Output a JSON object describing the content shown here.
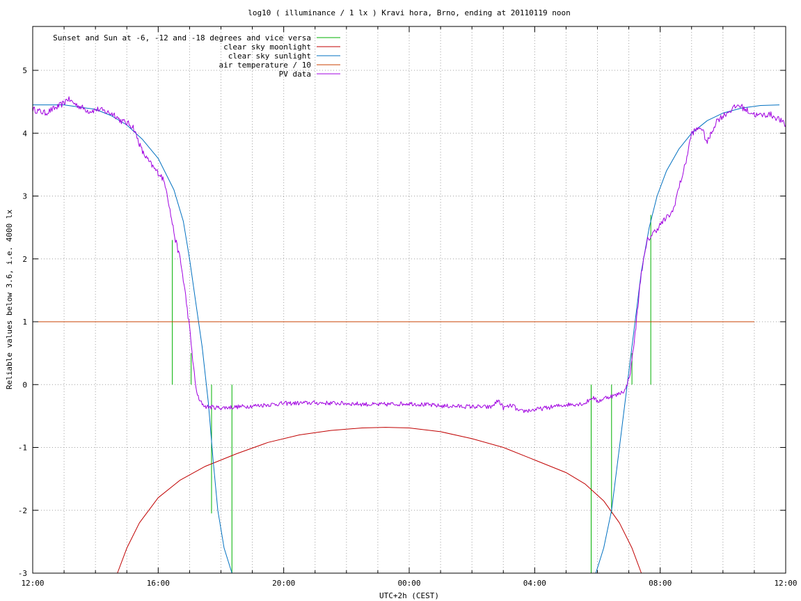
{
  "chart_data": {
    "type": "line",
    "title": "log10 ( illuminance / 1 lx ) Kravi hora, Brno, ending at 20110119 noon",
    "xlabel": "UTC+2h (CEST)",
    "ylabel": "Reliable values below 3.6, i.e. 4000 lx",
    "xlim": [
      -12,
      12
    ],
    "ylim": [
      -3,
      5.8
    ],
    "x_unit": "hours relative to 00:00 UTC+2h",
    "x_ticks_major": [
      {
        "x": -12,
        "label": "12:00"
      },
      {
        "x": -8,
        "label": "16:00"
      },
      {
        "x": -4,
        "label": "20:00"
      },
      {
        "x": 0,
        "label": "00:00"
      },
      {
        "x": 4,
        "label": "04:00"
      },
      {
        "x": 8,
        "label": "08:00"
      },
      {
        "x": 12,
        "label": "12:00"
      }
    ],
    "x_ticks_minor": [
      -11,
      -10,
      -9,
      -7,
      -6,
      -5,
      -3,
      -2,
      -1,
      1,
      2,
      3,
      5,
      6,
      7,
      9,
      10,
      11
    ],
    "y_ticks": [
      {
        "y": -3,
        "label": "-3"
      },
      {
        "y": -2,
        "label": "-2"
      },
      {
        "y": -1,
        "label": "-1"
      },
      {
        "y": 0,
        "label": "0"
      },
      {
        "y": 1,
        "label": "1"
      },
      {
        "y": 2,
        "label": "2"
      },
      {
        "y": 3,
        "label": "3"
      },
      {
        "y": 4,
        "label": "4"
      },
      {
        "y": 5,
        "label": "5"
      }
    ],
    "grid": true,
    "legend_position": "top-left",
    "colors": {
      "sun_marks": "#00b000",
      "moonlight": "#c00000",
      "sunlight": "#0070c0",
      "air_temp": "#c84000",
      "pv": "#a000e0"
    },
    "series": [
      {
        "name": "Sunset and Sun at -6, -12 and -18 degrees and vice versa",
        "kind": "vertical-marks",
        "color": "#00b000",
        "marks": [
          {
            "x": -7.55,
            "y_from": 0,
            "y_to": 2.3
          },
          {
            "x": -6.95,
            "y_from": 0,
            "y_to": 0.5
          },
          {
            "x": -6.3,
            "y_from": -2.05,
            "y_to": 0
          },
          {
            "x": -5.65,
            "y_from": -3,
            "y_to": 0
          },
          {
            "x": 5.8,
            "y_from": -3,
            "y_to": 0
          },
          {
            "x": 6.45,
            "y_from": -2.05,
            "y_to": 0
          },
          {
            "x": 7.1,
            "y_from": 0,
            "y_to": 0.5
          },
          {
            "x": 7.7,
            "y_from": 0,
            "y_to": 2.7
          }
        ]
      },
      {
        "name": "clear sky moonlight",
        "color": "#c00000",
        "points": [
          [
            -9.3,
            -3.0
          ],
          [
            -9.0,
            -2.6
          ],
          [
            -8.6,
            -2.2
          ],
          [
            -8.0,
            -1.8
          ],
          [
            -7.3,
            -1.52
          ],
          [
            -6.5,
            -1.3
          ],
          [
            -5.5,
            -1.1
          ],
          [
            -4.5,
            -0.92
          ],
          [
            -3.5,
            -0.8
          ],
          [
            -2.5,
            -0.73
          ],
          [
            -1.5,
            -0.69
          ],
          [
            -0.75,
            -0.68
          ],
          [
            0.0,
            -0.69
          ],
          [
            1.0,
            -0.75
          ],
          [
            2.0,
            -0.86
          ],
          [
            3.0,
            -1.0
          ],
          [
            4.0,
            -1.2
          ],
          [
            5.0,
            -1.4
          ],
          [
            5.6,
            -1.58
          ],
          [
            6.2,
            -1.85
          ],
          [
            6.7,
            -2.2
          ],
          [
            7.1,
            -2.6
          ],
          [
            7.4,
            -3.0
          ]
        ]
      },
      {
        "name": "clear sky sunlight",
        "color": "#0070c0",
        "points": [
          [
            -12.0,
            4.45
          ],
          [
            -11.0,
            4.45
          ],
          [
            -10.0,
            4.38
          ],
          [
            -9.5,
            4.28
          ],
          [
            -9.0,
            4.13
          ],
          [
            -8.5,
            3.9
          ],
          [
            -8.0,
            3.6
          ],
          [
            -7.5,
            3.1
          ],
          [
            -7.2,
            2.6
          ],
          [
            -7.0,
            2.0
          ],
          [
            -6.8,
            1.3
          ],
          [
            -6.6,
            0.6
          ],
          [
            -6.4,
            -0.3
          ],
          [
            -6.25,
            -1.2
          ],
          [
            -6.1,
            -2.0
          ],
          [
            -5.9,
            -2.6
          ],
          [
            -5.65,
            -3.0
          ],
          [
            5.95,
            -3.0
          ],
          [
            6.2,
            -2.6
          ],
          [
            6.45,
            -2.0
          ],
          [
            6.7,
            -1.0
          ],
          [
            6.95,
            0.0
          ],
          [
            7.15,
            0.8
          ],
          [
            7.4,
            1.8
          ],
          [
            7.65,
            2.5
          ],
          [
            7.9,
            3.0
          ],
          [
            8.2,
            3.4
          ],
          [
            8.6,
            3.75
          ],
          [
            9.0,
            4.0
          ],
          [
            9.5,
            4.2
          ],
          [
            10.0,
            4.32
          ],
          [
            10.6,
            4.4
          ],
          [
            11.2,
            4.44
          ],
          [
            11.8,
            4.45
          ]
        ]
      },
      {
        "name": "air temperature / 10",
        "color": "#c84000",
        "points": [
          [
            -12.0,
            1.0
          ],
          [
            11.0,
            1.0
          ]
        ]
      },
      {
        "name": "PV data",
        "color": "#a000e0",
        "noisy": true,
        "points": [
          [
            -12.0,
            4.38
          ],
          [
            -11.6,
            4.32
          ],
          [
            -11.2,
            4.42
          ],
          [
            -11.0,
            4.48
          ],
          [
            -10.9,
            4.55
          ],
          [
            -10.6,
            4.45
          ],
          [
            -10.2,
            4.35
          ],
          [
            -9.9,
            4.38
          ],
          [
            -9.6,
            4.33
          ],
          [
            -9.4,
            4.3
          ],
          [
            -9.2,
            4.2
          ],
          [
            -8.95,
            4.15
          ],
          [
            -8.8,
            4.1
          ],
          [
            -8.65,
            3.9
          ],
          [
            -8.5,
            3.7
          ],
          [
            -8.3,
            3.55
          ],
          [
            -8.1,
            3.42
          ],
          [
            -7.9,
            3.32
          ],
          [
            -7.75,
            3.15
          ],
          [
            -7.6,
            2.7
          ],
          [
            -7.45,
            2.3
          ],
          [
            -7.3,
            2.0
          ],
          [
            -7.15,
            1.5
          ],
          [
            -7.0,
            0.9
          ],
          [
            -6.9,
            0.4
          ],
          [
            -6.8,
            -0.05
          ],
          [
            -6.7,
            -0.25
          ],
          [
            -6.5,
            -0.35
          ],
          [
            -6.0,
            -0.37
          ],
          [
            -5.0,
            -0.34
          ],
          [
            -4.0,
            -0.3
          ],
          [
            -3.0,
            -0.29
          ],
          [
            -2.0,
            -0.3
          ],
          [
            -1.0,
            -0.32
          ],
          [
            0.0,
            -0.3
          ],
          [
            1.0,
            -0.34
          ],
          [
            2.0,
            -0.35
          ],
          [
            2.6,
            -0.36
          ],
          [
            2.85,
            -0.25
          ],
          [
            3.0,
            -0.37
          ],
          [
            3.3,
            -0.33
          ],
          [
            3.5,
            -0.43
          ],
          [
            4.0,
            -0.4
          ],
          [
            5.0,
            -0.32
          ],
          [
            5.6,
            -0.3
          ],
          [
            5.85,
            -0.2
          ],
          [
            6.0,
            -0.27
          ],
          [
            6.3,
            -0.2
          ],
          [
            6.6,
            -0.17
          ],
          [
            6.9,
            -0.08
          ],
          [
            7.05,
            0.2
          ],
          [
            7.2,
            0.8
          ],
          [
            7.4,
            1.8
          ],
          [
            7.6,
            2.3
          ],
          [
            7.85,
            2.45
          ],
          [
            8.1,
            2.6
          ],
          [
            8.4,
            2.75
          ],
          [
            8.55,
            3.05
          ],
          [
            8.8,
            3.5
          ],
          [
            9.0,
            4.0
          ],
          [
            9.3,
            4.1
          ],
          [
            9.5,
            3.85
          ],
          [
            9.8,
            4.2
          ],
          [
            10.2,
            4.35
          ],
          [
            10.5,
            4.45
          ],
          [
            10.8,
            4.35
          ],
          [
            11.1,
            4.28
          ],
          [
            11.5,
            4.3
          ],
          [
            11.8,
            4.22
          ],
          [
            12.0,
            4.12
          ]
        ]
      }
    ]
  }
}
